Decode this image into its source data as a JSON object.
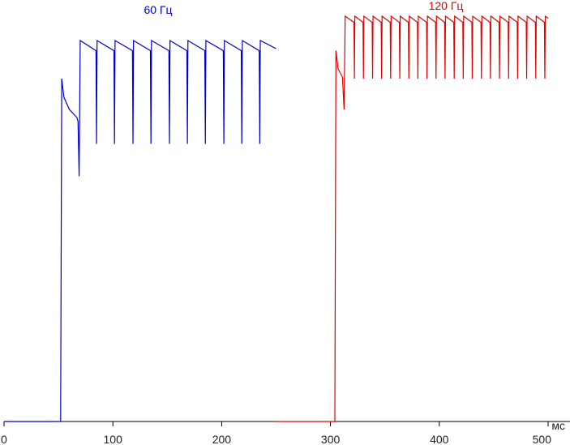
{
  "chart_data": {
    "type": "line",
    "x_label": "мс",
    "xlim": [
      0,
      500
    ],
    "xticks": [
      0,
      100,
      200,
      300,
      400,
      500
    ],
    "ylim": [
      0,
      104
    ],
    "series": [
      {
        "name": "60 Гц",
        "color": "#0000cc",
        "x": [
          0,
          52,
          53,
          55,
          60,
          67,
          68,
          69,
          70,
          84.5,
          85,
          85.5,
          101,
          101.5,
          102,
          118,
          118.5,
          119,
          134.5,
          135,
          135.5,
          151.5,
          152,
          152.5,
          168,
          168.5,
          169,
          184.5,
          185,
          185.5,
          201.5,
          202,
          202.5,
          218,
          218.5,
          219,
          234.5,
          235,
          235.5,
          250
        ],
        "values": [
          0,
          0,
          84.6,
          80,
          77,
          75,
          74,
          60.5,
          94,
          91.5,
          68.5,
          94,
          91.5,
          68.5,
          94,
          91.5,
          68.5,
          94,
          91.5,
          68.5,
          94,
          91.5,
          68.5,
          94,
          91.5,
          68.5,
          94,
          91.5,
          68.5,
          94,
          91.5,
          68.5,
          94,
          91.5,
          68.5,
          94,
          91.5,
          68.5,
          94,
          92
        ]
      },
      {
        "name": "120 Гц",
        "color": "#e00000",
        "x": [
          250,
          304,
          305,
          307,
          311,
          312.5,
          313.5,
          321.6,
          322,
          322.4,
          329.9,
          330.3,
          330.7,
          338.3,
          338.7,
          339.1,
          346.6,
          347,
          347.4,
          354.9,
          355.3,
          355.7,
          363.3,
          363.7,
          364.1,
          371.6,
          372,
          372.4,
          379.9,
          380.3,
          380.7,
          388.3,
          388.7,
          389.1,
          396.6,
          397,
          397.4,
          404.9,
          405.3,
          405.7,
          413.3,
          413.7,
          414.1,
          421.6,
          422,
          422.4,
          429.9,
          430.3,
          430.7,
          438.3,
          438.7,
          439.1,
          446.6,
          447,
          447.4,
          454.9,
          455.3,
          455.7,
          463.3,
          463.7,
          464.1,
          471.6,
          472,
          472.4,
          479.9,
          480.3,
          480.7,
          488.3,
          488.7,
          489.1,
          496.6,
          497,
          497.4,
          500
        ],
        "values": [
          0,
          0,
          91.5,
          87,
          85,
          77,
          100,
          98.5,
          84.6,
          100,
          98.5,
          84.6,
          100,
          98.5,
          84.6,
          100,
          98.5,
          84.6,
          100,
          98.5,
          84.6,
          100,
          98.5,
          84.6,
          100,
          98.5,
          84.6,
          100,
          98.5,
          84.6,
          100,
          98.5,
          84.6,
          100,
          98.5,
          84.6,
          100,
          98.5,
          84.6,
          100,
          98.5,
          84.6,
          100,
          98.5,
          84.6,
          100,
          98.5,
          84.6,
          100,
          98.5,
          84.6,
          100,
          98.5,
          84.6,
          100,
          98.5,
          84.6,
          100,
          98.5,
          84.6,
          100,
          98.5,
          84.6,
          100,
          98.5,
          84.6,
          100,
          98.5,
          84.6,
          100,
          98.5,
          84.6,
          100,
          99.5
        ]
      }
    ]
  }
}
